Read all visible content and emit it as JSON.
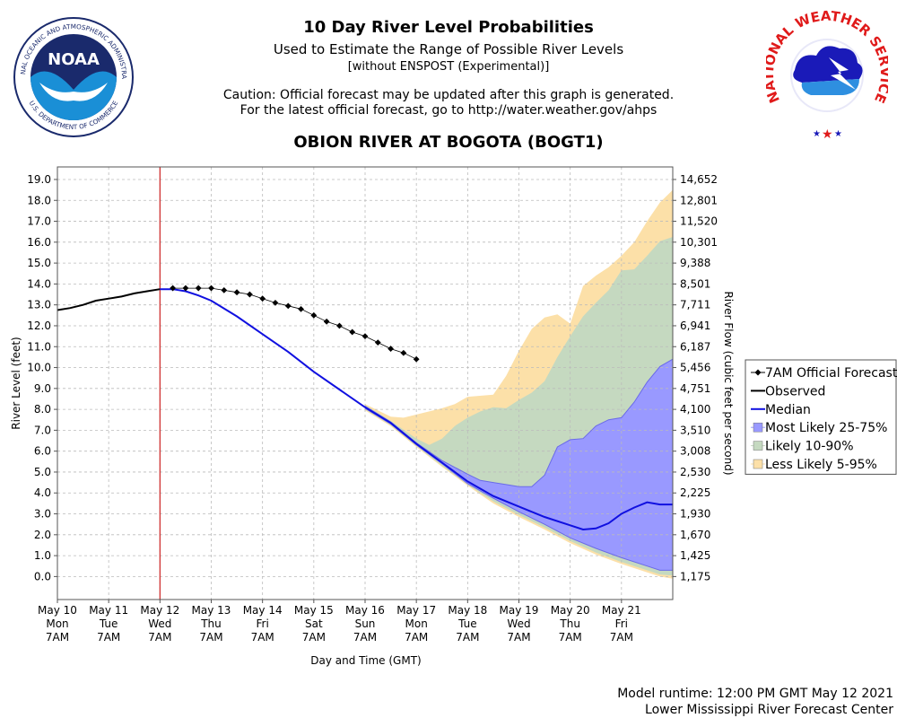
{
  "header": {
    "title": "10 Day River Level Probabilities",
    "subtitle": "Used to Estimate the Range of Possible River Levels",
    "subnote": "[without ENSPOST (Experimental)]",
    "caution_line1": "Caution: Official forecast may be updated after this graph is generated.",
    "caution_line2": "For the latest official forecast, go to http://water.weather.gov/ahps",
    "location": "OBION RIVER AT BOGOTA (BOGT1)"
  },
  "logos": {
    "noaa_text": "NOAA",
    "noaa_ring": "NATIONAL OCEANIC AND ATMOSPHERIC ADMINISTRATION",
    "noaa_ring_bottom": "U.S. DEPARTMENT OF COMMERCE",
    "nws_ring": "NATIONAL WEATHER SERVICE"
  },
  "footer": {
    "runtime": "Model runtime: 12:00 PM GMT May 12 2021",
    "center": "Lower Mississippi River Forecast Center"
  },
  "colors": {
    "observed": "#000000",
    "median": "#1010e0",
    "band_25_75": "#9999ff",
    "band_10_90": "#c5d9c0",
    "band_5_95": "#fce0a8",
    "now_line": "#cc2222",
    "official": "#000000"
  },
  "chart_data": {
    "type": "line",
    "xlabel": "Day and Time (GMT)",
    "ylabel": "River Level (feet)",
    "y2label": "River Flow (cubic feet per second)",
    "ylim": [
      -1.1,
      19.6
    ],
    "xlim": [
      0,
      12
    ],
    "x_unit": "days since May 10 7AM",
    "now_x": 2,
    "grid": true,
    "legend_position": "right",
    "x_ticks": [
      {
        "x": 0,
        "lines": [
          "May 10",
          "Mon",
          "7AM"
        ]
      },
      {
        "x": 1,
        "lines": [
          "May 11",
          "Tue",
          "7AM"
        ]
      },
      {
        "x": 2,
        "lines": [
          "May 12",
          "Wed",
          "7AM"
        ]
      },
      {
        "x": 3,
        "lines": [
          "May 13",
          "Thu",
          "7AM"
        ]
      },
      {
        "x": 4,
        "lines": [
          "May 14",
          "Fri",
          "7AM"
        ]
      },
      {
        "x": 5,
        "lines": [
          "May 15",
          "Sat",
          "7AM"
        ]
      },
      {
        "x": 6,
        "lines": [
          "May 16",
          "Sun",
          "7AM"
        ]
      },
      {
        "x": 7,
        "lines": [
          "May 17",
          "Mon",
          "7AM"
        ]
      },
      {
        "x": 8,
        "lines": [
          "May 18",
          "Tue",
          "7AM"
        ]
      },
      {
        "x": 9,
        "lines": [
          "May 19",
          "Wed",
          "7AM"
        ]
      },
      {
        "x": 10,
        "lines": [
          "May 20",
          "Thu",
          "7AM"
        ]
      },
      {
        "x": 11,
        "lines": [
          "May 21",
          "Fri",
          "7AM"
        ]
      }
    ],
    "y_ticks": [
      "19.0",
      "18.0",
      "17.0",
      "16.0",
      "15.0",
      "14.0",
      "13.0",
      "12.0",
      "11.0",
      "10.0",
      "9.0",
      "8.0",
      "7.0",
      "6.0",
      "5.0",
      "4.0",
      "3.0",
      "2.0",
      "1.0",
      "0.0"
    ],
    "y2_ticks": [
      "14,652",
      "12,801",
      "11,520",
      "10,301",
      "9,388",
      "8,501",
      "7,711",
      "6,941",
      "6,187",
      "5,456",
      "4,751",
      "4,100",
      "3,510",
      "3,008",
      "2,530",
      "2,225",
      "1,930",
      "1,670",
      "1,425",
      "1,175"
    ],
    "legend": [
      {
        "label": "7AM Official Forecast",
        "kind": "diamond-line",
        "color": "#000000"
      },
      {
        "label": "Observed",
        "kind": "line",
        "color": "#000000"
      },
      {
        "label": "Median",
        "kind": "line",
        "color": "#1010e0"
      },
      {
        "label": "Most Likely 25-75%",
        "kind": "box",
        "color": "#9999ff"
      },
      {
        "label": "Likely 10-90%",
        "kind": "box",
        "color": "#c5d9c0"
      },
      {
        "label": "Less Likely 5-95%",
        "kind": "box",
        "color": "#fce0a8"
      }
    ],
    "series": [
      {
        "name": "Observed",
        "points": [
          [
            0,
            12.75
          ],
          [
            0.25,
            12.85
          ],
          [
            0.5,
            13.0
          ],
          [
            0.75,
            13.2
          ],
          [
            1.0,
            13.3
          ],
          [
            1.25,
            13.4
          ],
          [
            1.5,
            13.55
          ],
          [
            1.75,
            13.65
          ],
          [
            2.0,
            13.75
          ]
        ]
      },
      {
        "name": "7AM Official Forecast",
        "points": [
          [
            2.25,
            13.8
          ],
          [
            2.5,
            13.8
          ],
          [
            2.75,
            13.8
          ],
          [
            3.0,
            13.8
          ],
          [
            3.25,
            13.7
          ],
          [
            3.5,
            13.6
          ],
          [
            3.75,
            13.5
          ],
          [
            4.0,
            13.3
          ],
          [
            4.25,
            13.1
          ],
          [
            4.5,
            12.95
          ],
          [
            4.75,
            12.8
          ],
          [
            5.0,
            12.5
          ],
          [
            5.25,
            12.2
          ],
          [
            5.5,
            12.0
          ],
          [
            5.75,
            11.7
          ],
          [
            6.0,
            11.5
          ],
          [
            6.25,
            11.2
          ],
          [
            6.5,
            10.9
          ],
          [
            6.75,
            10.7
          ],
          [
            7.0,
            10.4
          ]
        ]
      },
      {
        "name": "Median",
        "points": [
          [
            2.0,
            13.75
          ],
          [
            2.25,
            13.75
          ],
          [
            2.5,
            13.65
          ],
          [
            2.75,
            13.45
          ],
          [
            3.0,
            13.2
          ],
          [
            3.5,
            12.45
          ],
          [
            4.0,
            11.6
          ],
          [
            4.5,
            10.75
          ],
          [
            5.0,
            9.8
          ],
          [
            5.5,
            8.95
          ],
          [
            6.0,
            8.1
          ],
          [
            6.5,
            7.35
          ],
          [
            7.0,
            6.35
          ],
          [
            7.5,
            5.45
          ],
          [
            8.0,
            4.55
          ],
          [
            8.5,
            3.85
          ],
          [
            9.0,
            3.35
          ],
          [
            9.5,
            2.85
          ],
          [
            10.0,
            2.45
          ],
          [
            10.25,
            2.25
          ],
          [
            10.5,
            2.3
          ],
          [
            10.75,
            2.55
          ],
          [
            11.0,
            3.0
          ],
          [
            11.25,
            3.3
          ],
          [
            11.5,
            3.55
          ],
          [
            11.75,
            3.45
          ],
          [
            12.0,
            3.45
          ]
        ]
      },
      {
        "name": "Most Likely 25-75%",
        "upper": [
          [
            6.0,
            8.15
          ],
          [
            6.5,
            7.4
          ],
          [
            7.0,
            6.4
          ],
          [
            7.5,
            5.55
          ],
          [
            8.0,
            4.9
          ],
          [
            8.25,
            4.6
          ],
          [
            8.5,
            4.5
          ],
          [
            8.75,
            4.4
          ],
          [
            9.0,
            4.3
          ],
          [
            9.25,
            4.3
          ],
          [
            9.5,
            4.85
          ],
          [
            9.75,
            6.2
          ],
          [
            10.0,
            6.55
          ],
          [
            10.25,
            6.6
          ],
          [
            10.5,
            7.2
          ],
          [
            10.75,
            7.5
          ],
          [
            11.0,
            7.6
          ],
          [
            11.25,
            8.35
          ],
          [
            11.5,
            9.3
          ],
          [
            11.75,
            10.05
          ],
          [
            12.0,
            10.4
          ]
        ],
        "lower": [
          [
            6.0,
            8.05
          ],
          [
            6.5,
            7.3
          ],
          [
            7.0,
            6.3
          ],
          [
            7.5,
            5.4
          ],
          [
            8.0,
            4.45
          ],
          [
            8.5,
            3.75
          ],
          [
            9.0,
            3.1
          ],
          [
            9.5,
            2.5
          ],
          [
            10.0,
            1.85
          ],
          [
            10.5,
            1.35
          ],
          [
            11.0,
            0.9
          ],
          [
            11.5,
            0.5
          ],
          [
            11.75,
            0.3
          ],
          [
            12.0,
            0.3
          ]
        ]
      },
      {
        "name": "Likely 10-90%",
        "upper": [
          [
            6.0,
            8.2
          ],
          [
            6.5,
            7.45
          ],
          [
            7.0,
            6.6
          ],
          [
            7.25,
            6.3
          ],
          [
            7.5,
            6.6
          ],
          [
            7.75,
            7.2
          ],
          [
            8.0,
            7.6
          ],
          [
            8.25,
            7.9
          ],
          [
            8.5,
            8.1
          ],
          [
            8.75,
            8.05
          ],
          [
            9.0,
            8.45
          ],
          [
            9.25,
            8.8
          ],
          [
            9.5,
            9.35
          ],
          [
            9.75,
            10.5
          ],
          [
            10.0,
            11.5
          ],
          [
            10.25,
            12.45
          ],
          [
            10.5,
            13.1
          ],
          [
            10.75,
            13.7
          ],
          [
            11.0,
            14.65
          ],
          [
            11.25,
            14.7
          ],
          [
            11.5,
            15.35
          ],
          [
            11.75,
            16.05
          ],
          [
            12.0,
            16.25
          ]
        ],
        "lower": [
          [
            6.0,
            8.0
          ],
          [
            6.5,
            7.25
          ],
          [
            7.0,
            6.25
          ],
          [
            7.5,
            5.3
          ],
          [
            8.0,
            4.4
          ],
          [
            8.5,
            3.6
          ],
          [
            9.0,
            2.95
          ],
          [
            9.5,
            2.35
          ],
          [
            10.0,
            1.7
          ],
          [
            10.5,
            1.15
          ],
          [
            11.0,
            0.7
          ],
          [
            11.5,
            0.3
          ],
          [
            11.75,
            0.1
          ],
          [
            12.0,
            0.05
          ]
        ]
      },
      {
        "name": "Less Likely 5-95%",
        "upper": [
          [
            6.0,
            8.25
          ],
          [
            6.25,
            7.95
          ],
          [
            6.5,
            7.65
          ],
          [
            6.75,
            7.6
          ],
          [
            7.0,
            7.75
          ],
          [
            7.25,
            7.9
          ],
          [
            7.5,
            8.05
          ],
          [
            7.75,
            8.25
          ],
          [
            8.0,
            8.6
          ],
          [
            8.5,
            8.7
          ],
          [
            8.75,
            9.6
          ],
          [
            9.0,
            10.8
          ],
          [
            9.25,
            11.85
          ],
          [
            9.5,
            12.4
          ],
          [
            9.75,
            12.55
          ],
          [
            10.0,
            12.1
          ],
          [
            10.25,
            13.9
          ],
          [
            10.5,
            14.4
          ],
          [
            10.75,
            14.8
          ],
          [
            11.0,
            15.35
          ],
          [
            11.25,
            16.0
          ],
          [
            11.5,
            17.0
          ],
          [
            11.75,
            17.9
          ],
          [
            12.0,
            18.5
          ]
        ],
        "lower": [
          [
            6.0,
            7.95
          ],
          [
            6.5,
            7.2
          ],
          [
            7.0,
            6.2
          ],
          [
            7.5,
            5.25
          ],
          [
            8.0,
            4.35
          ],
          [
            8.5,
            3.5
          ],
          [
            9.0,
            2.85
          ],
          [
            9.5,
            2.25
          ],
          [
            10.0,
            1.6
          ],
          [
            10.5,
            1.05
          ],
          [
            11.0,
            0.6
          ],
          [
            11.5,
            0.2
          ],
          [
            11.75,
            0.0
          ],
          [
            12.0,
            -0.1
          ]
        ]
      }
    ]
  }
}
